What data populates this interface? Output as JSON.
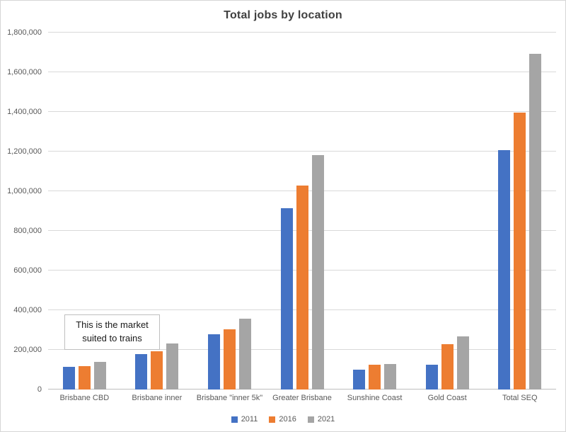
{
  "chart_data": {
    "type": "bar",
    "title": "Total jobs by location",
    "categories": [
      "Brisbane CBD",
      "Brisbane inner",
      "Brisbane \"inner 5k\"",
      "Greater Brisbane",
      "Sunshine Coast",
      "Gold Coast",
      "Total SEQ"
    ],
    "series": [
      {
        "name": "2011",
        "color": "#4472C4",
        "values": [
          113000,
          179000,
          279000,
          915000,
          101000,
          124000,
          1207000
        ]
      },
      {
        "name": "2016",
        "color": "#ED7D31",
        "values": [
          118000,
          192000,
          303000,
          1029000,
          124000,
          230000,
          1398000
        ]
      },
      {
        "name": "2021",
        "color": "#A5A5A5",
        "values": [
          141000,
          231000,
          357000,
          1183000,
          130000,
          268000,
          1693000
        ]
      }
    ],
    "xlabel": "",
    "ylabel": "",
    "ylim": [
      0,
      1800000
    ],
    "ytick_step": 200000,
    "grid": true,
    "legend_position": "bottom",
    "annotation": {
      "line1": "This is the market",
      "line2": "suited to trains"
    }
  },
  "colors": {
    "gridline": "#D9D9D9",
    "axis_line": "#BFBFBF",
    "title_text": "#404040",
    "axis_text": "#595959",
    "annotation_border": "#BFBFBF",
    "background": "#FFFFFF"
  }
}
